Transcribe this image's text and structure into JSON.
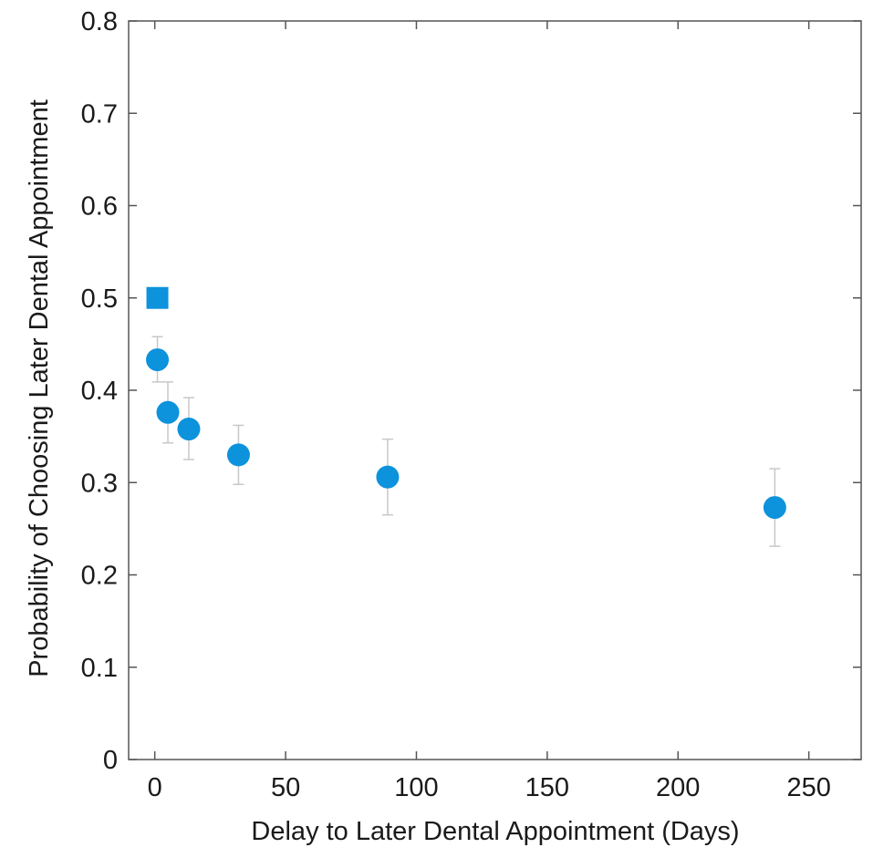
{
  "chart_data": {
    "type": "scatter",
    "title": "",
    "xlabel": "Delay to Later Dental Appointment (Days)",
    "ylabel": "Probability of Choosing Later Dental Appointment",
    "xlim": [
      -10,
      270
    ],
    "ylim": [
      0,
      0.8
    ],
    "x_ticks": [
      0,
      50,
      100,
      150,
      200,
      250
    ],
    "y_ticks": [
      0,
      0.1,
      0.2,
      0.3,
      0.4,
      0.5,
      0.6,
      0.7,
      0.8
    ],
    "x_tick_labels": [
      "0",
      "50",
      "100",
      "150",
      "200",
      "250"
    ],
    "y_tick_labels": [
      "0",
      "0.1",
      "0.2",
      "0.3",
      "0.4",
      "0.5",
      "0.6",
      "0.7",
      "0.8"
    ],
    "grid": false,
    "legend": "none",
    "series": [
      {
        "marker": "circle",
        "color": "#0d92dc",
        "points": [
          {
            "x": 1,
            "y": 0.433,
            "err_low": 0.409,
            "err_high": 0.458
          },
          {
            "x": 5,
            "y": 0.376,
            "err_low": 0.343,
            "err_high": 0.409
          },
          {
            "x": 13,
            "y": 0.358,
            "err_low": 0.325,
            "err_high": 0.392
          },
          {
            "x": 32,
            "y": 0.33,
            "err_low": 0.298,
            "err_high": 0.362
          },
          {
            "x": 89,
            "y": 0.306,
            "err_low": 0.265,
            "err_high": 0.347
          },
          {
            "x": 237,
            "y": 0.273,
            "err_low": 0.231,
            "err_high": 0.315
          }
        ]
      },
      {
        "marker": "square",
        "color": "#0d92dc",
        "points": [
          {
            "x": 1,
            "y": 0.5
          }
        ]
      }
    ],
    "error_bar_color": "#c8c8c8",
    "axis_color": "#555555"
  }
}
